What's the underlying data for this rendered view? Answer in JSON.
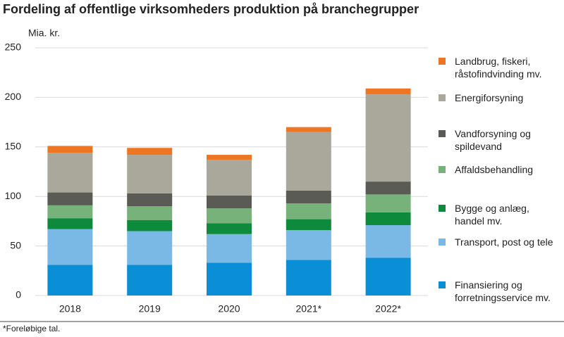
{
  "chart_data": {
    "type": "stacked_bar",
    "title": "Fordeling af offentlige virksomheders produktion på branchegrupper",
    "y_label": "Mia. kr.",
    "footnote": "*Foreløbige tal.",
    "categories": [
      "2018",
      "2019",
      "2020",
      "2021*",
      "2022*"
    ],
    "ylim": [
      0,
      250
    ],
    "yticks": [
      0,
      50,
      100,
      150,
      200,
      250
    ],
    "grid": true,
    "series": [
      {
        "name": "Finansiering og forretningsservice mv.",
        "color": "#0a8fd6",
        "values": [
          31,
          31,
          33,
          36,
          38
        ]
      },
      {
        "name": "Transport, post og tele",
        "color": "#7ab8e6",
        "values": [
          36,
          34,
          29,
          30,
          33
        ]
      },
      {
        "name": "Bygge og anlæg, handel mv.",
        "color": "#0e8a3c",
        "values": [
          11,
          11,
          11,
          11,
          13
        ]
      },
      {
        "name": "Affaldsbehandling",
        "color": "#76b27a",
        "values": [
          13,
          14,
          15,
          16,
          18
        ]
      },
      {
        "name": "Vandforsyning og spildevand",
        "color": "#5b5b55",
        "values": [
          13,
          13,
          13,
          13,
          13
        ]
      },
      {
        "name": "Energiforsyning",
        "color": "#a9a89b",
        "values": [
          40,
          39,
          36,
          59,
          88
        ]
      },
      {
        "name": "Landbrug, fiskeri, råstofindvinding mv.",
        "color": "#ee7623",
        "values": [
          7,
          7,
          5,
          5,
          6
        ]
      }
    ]
  }
}
